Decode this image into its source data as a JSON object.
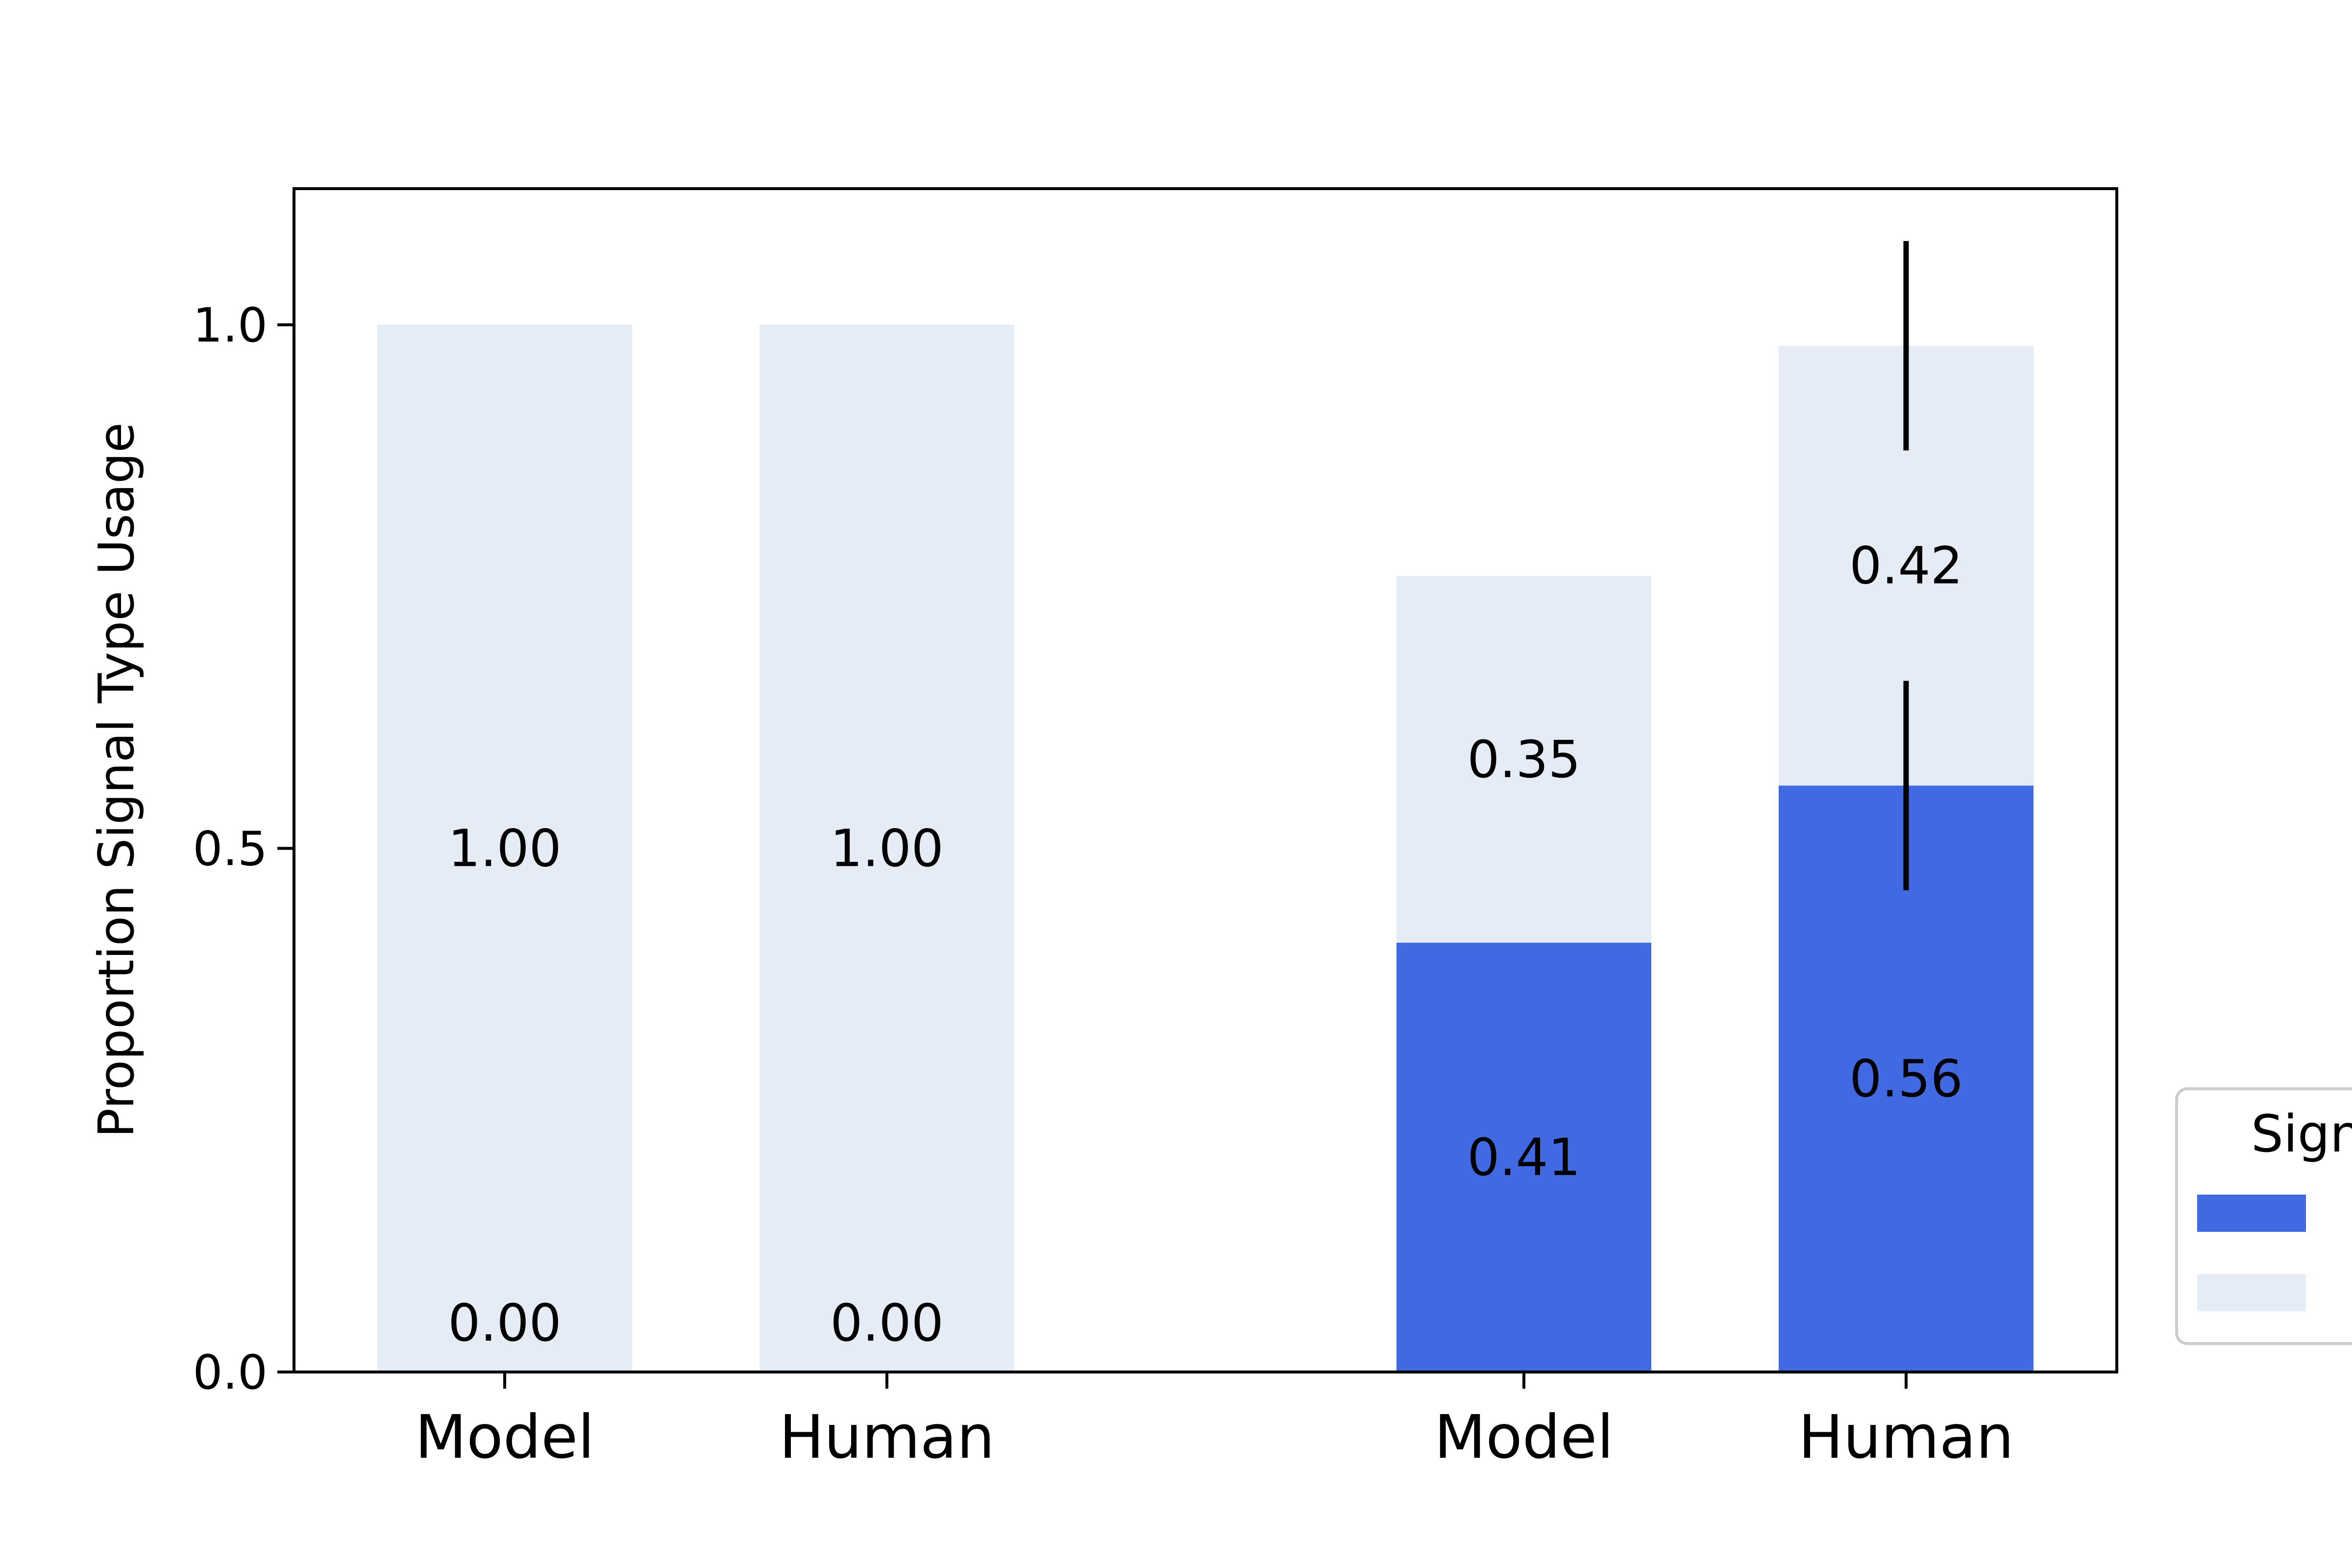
{
  "chart_data": {
    "type": "bar",
    "stacked": true,
    "ylabel": "Proportion Signal Type Usage",
    "ylim": [
      0,
      1.13
    ],
    "yticks": [
      "0.0",
      "0.5",
      "1.0"
    ],
    "categories": [
      "Model",
      "Human",
      "Model",
      "Human"
    ],
    "series": [
      {
        "color": "#4169e1",
        "values": [
          0.0,
          0.0,
          0.41,
          0.56
        ],
        "labels": [
          "0.00",
          "0.00",
          "0.41",
          "0.56"
        ],
        "error": [
          null,
          null,
          null,
          0.1
        ]
      },
      {
        "color": "#e6ecf5",
        "values": [
          1.0,
          1.0,
          0.35,
          0.42
        ],
        "labels": [
          "1.00",
          "1.00",
          "0.35",
          "0.42"
        ],
        "error": [
          null,
          null,
          null,
          0.1
        ]
      }
    ],
    "legend": {
      "title": "Sign",
      "position": "right, clipped by the figure edge"
    },
    "grid": false
  }
}
